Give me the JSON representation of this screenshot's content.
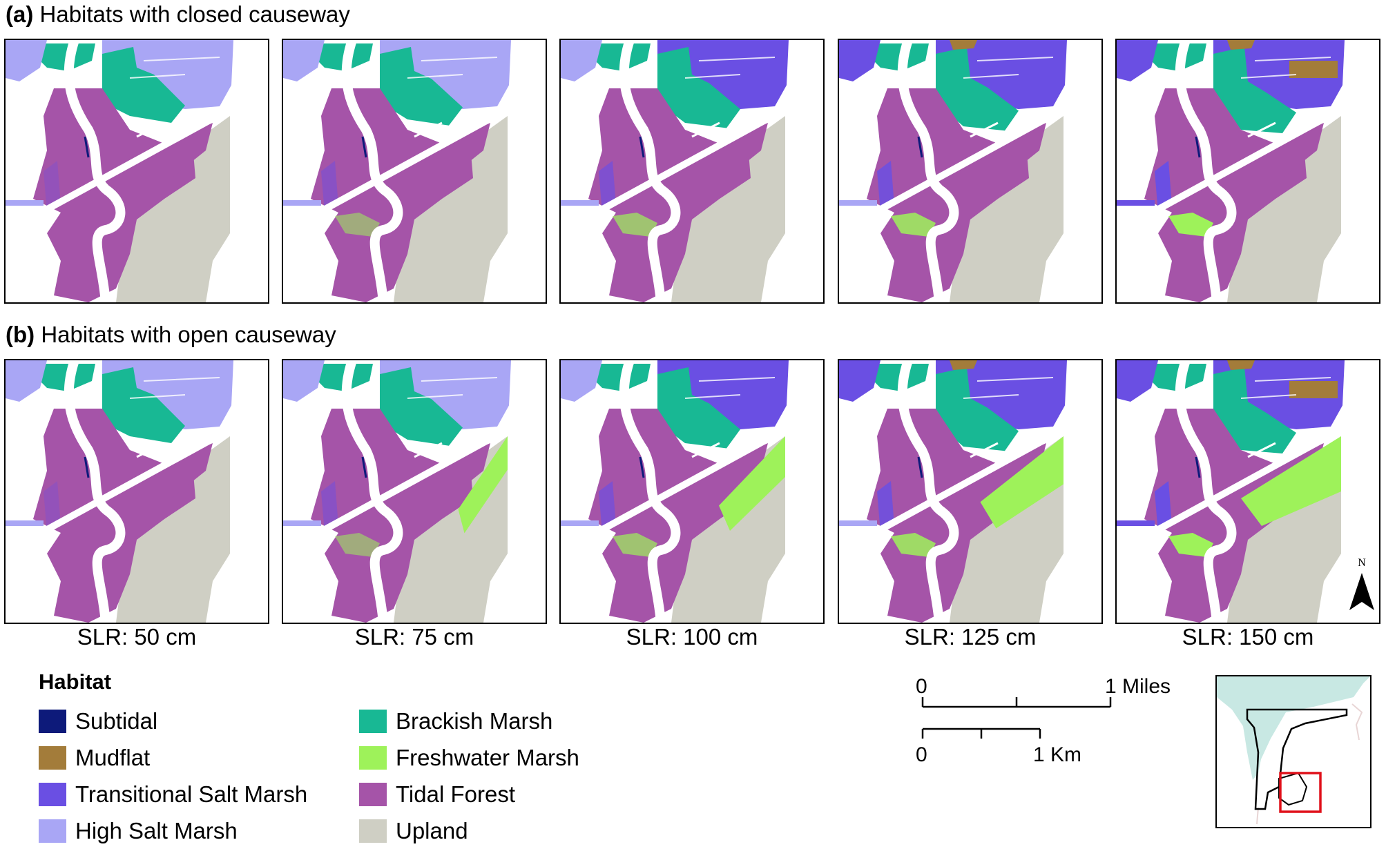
{
  "rows": [
    {
      "id": "a",
      "tag": "(a)",
      "title": "Habitats with closed causeway"
    },
    {
      "id": "b",
      "tag": "(b)",
      "title": "Habitats with open causeway"
    }
  ],
  "scenarios": [
    {
      "label": "SLR: 50 cm",
      "slr_cm": 50
    },
    {
      "label": "SLR: 75 cm",
      "slr_cm": 75
    },
    {
      "label": "SLR: 100 cm",
      "slr_cm": 100
    },
    {
      "label": "SLR: 125 cm",
      "slr_cm": 125
    },
    {
      "label": "SLR: 150 cm",
      "slr_cm": 150
    }
  ],
  "legend": {
    "title": "Habitat",
    "items": [
      {
        "label": "Subtidal",
        "color": "#0d1a7a"
      },
      {
        "label": "Mudflat",
        "color": "#a37c3a"
      },
      {
        "label": "Transitional Salt Marsh",
        "color": "#6a4fe3"
      },
      {
        "label": "High Salt Marsh",
        "color": "#a9a6f5"
      },
      {
        "label": "Brackish Marsh",
        "color": "#18b894"
      },
      {
        "label": "Freshwater Marsh",
        "color": "#9ef25a"
      },
      {
        "label": "Tidal Forest",
        "color": "#a554a8"
      },
      {
        "label": "Upland",
        "color": "#cfcfc4"
      }
    ]
  },
  "scale_bar": {
    "miles_start": "0",
    "miles_end": "1 Miles",
    "km_start": "0",
    "km_end": "1 Km"
  },
  "north_arrow": {
    "label": "N"
  },
  "inset": {
    "water_color": "#c8e8e3",
    "highlight_color": "#e0101a"
  }
}
